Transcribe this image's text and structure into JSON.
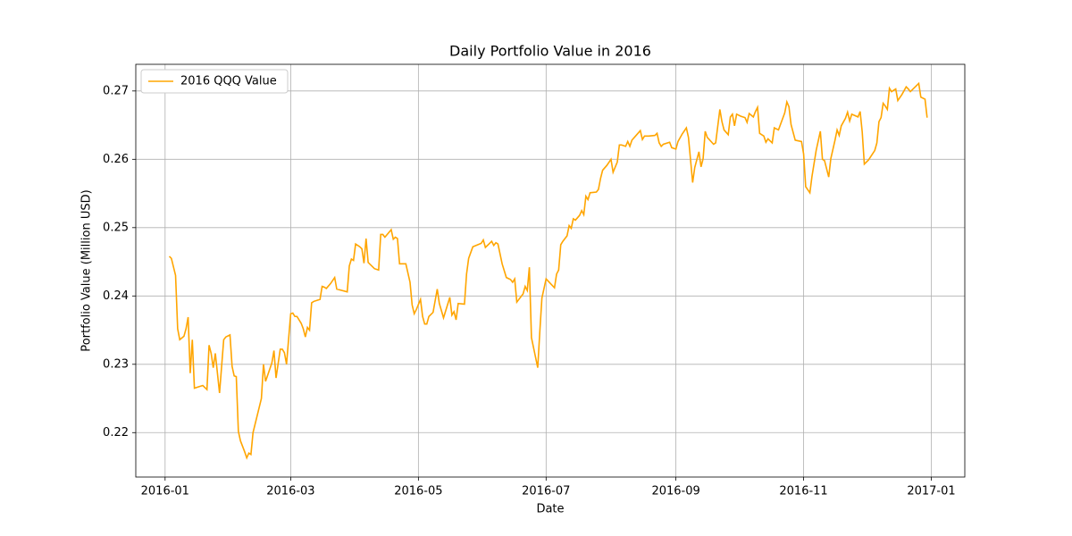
{
  "chart_data": {
    "type": "line",
    "title": "Daily Portfolio Value in 2016",
    "xlabel": "Date",
    "ylabel": "Portfolio Value (Million USD)",
    "x": [
      2,
      3,
      5,
      6,
      7,
      9,
      10,
      11,
      12,
      13,
      14,
      16,
      18,
      20,
      21,
      22,
      23,
      24,
      26,
      28,
      29,
      31,
      32,
      33,
      34,
      35,
      36,
      38,
      39,
      40,
      41,
      42,
      46,
      47,
      48,
      49,
      51,
      52,
      53,
      55,
      56,
      57,
      58,
      60,
      61,
      62,
      63,
      65,
      66,
      67,
      68,
      69,
      70,
      71,
      74,
      75,
      76,
      77,
      79,
      81,
      82,
      87,
      88,
      89,
      90,
      91,
      93,
      94,
      95,
      96,
      97,
      100,
      102,
      103,
      104,
      105,
      108,
      109,
      110,
      111,
      112,
      115,
      117,
      118,
      119,
      120,
      122,
      123,
      124,
      125,
      126,
      128,
      130,
      131,
      133,
      136,
      137,
      138,
      139,
      140,
      143,
      144,
      145,
      147,
      151,
      152,
      153,
      155,
      156,
      157,
      158,
      159,
      161,
      163,
      165,
      166,
      167,
      168,
      171,
      172,
      173,
      174,
      175,
      178,
      179,
      180,
      182,
      186,
      187,
      188,
      189,
      190,
      192,
      193,
      194,
      195,
      196,
      198,
      199,
      200,
      201,
      202,
      203,
      206,
      207,
      208,
      209,
      211,
      213,
      214,
      216,
      217,
      218,
      220,
      221,
      222,
      223,
      225,
      227,
      228,
      229,
      231,
      234,
      235,
      236,
      237,
      238,
      241,
      242,
      244,
      245,
      247,
      249,
      250,
      252,
      253,
      255,
      256,
      257,
      258,
      259,
      262,
      263,
      265,
      266,
      267,
      269,
      270,
      271,
      272,
      273,
      275,
      277,
      278,
      279,
      281,
      282,
      283,
      284,
      286,
      287,
      288,
      290,
      291,
      293,
      296,
      297,
      298,
      299,
      301,
      304,
      305,
      306,
      308,
      309,
      311,
      313,
      314,
      315,
      317,
      318,
      320,
      321,
      322,
      323,
      325,
      326,
      327,
      328,
      331,
      332,
      333,
      334,
      336,
      339,
      340,
      341,
      342,
      343,
      344,
      345,
      346,
      347,
      349,
      350,
      352,
      354,
      355,
      356,
      359,
      360,
      361,
      363,
      364
    ],
    "series": [
      {
        "name": "2016 QQQ Value",
        "color": "#ffa500",
        "values": [
          0.2458,
          0.2455,
          0.243,
          0.2352,
          0.2336,
          0.2341,
          0.2352,
          0.2369,
          0.2287,
          0.2336,
          0.2265,
          0.2267,
          0.2269,
          0.2263,
          0.2328,
          0.2316,
          0.2295,
          0.2316,
          0.2258,
          0.2336,
          0.234,
          0.2343,
          0.2297,
          0.2283,
          0.2282,
          0.2202,
          0.2188,
          0.2172,
          0.2163,
          0.217,
          0.2168,
          0.22,
          0.225,
          0.23,
          0.2275,
          0.2284,
          0.2302,
          0.232,
          0.228,
          0.2322,
          0.2322,
          0.2317,
          0.23,
          0.2374,
          0.2375,
          0.237,
          0.237,
          0.236,
          0.2352,
          0.234,
          0.2354,
          0.235,
          0.239,
          0.2392,
          0.2395,
          0.2414,
          0.2413,
          0.2411,
          0.2418,
          0.2427,
          0.241,
          0.2406,
          0.2444,
          0.2454,
          0.2452,
          0.2476,
          0.2472,
          0.2469,
          0.2448,
          0.2484,
          0.2449,
          0.244,
          0.2438,
          0.249,
          0.249,
          0.2486,
          0.2497,
          0.2483,
          0.2486,
          0.2484,
          0.2447,
          0.2447,
          0.242,
          0.2387,
          0.2374,
          0.238,
          0.2395,
          0.237,
          0.2359,
          0.2359,
          0.237,
          0.2376,
          0.241,
          0.2389,
          0.2368,
          0.2398,
          0.2372,
          0.2377,
          0.2365,
          0.2389,
          0.2388,
          0.2432,
          0.2455,
          0.2472,
          0.2477,
          0.2482,
          0.2471,
          0.2477,
          0.248,
          0.2474,
          0.2478,
          0.2476,
          0.2447,
          0.2427,
          0.2424,
          0.242,
          0.2425,
          0.2391,
          0.2403,
          0.2414,
          0.2408,
          0.2442,
          0.2339,
          0.2295,
          0.2348,
          0.2397,
          0.2425,
          0.2412,
          0.2432,
          0.2438,
          0.2475,
          0.248,
          0.2488,
          0.2503,
          0.2499,
          0.2513,
          0.2511,
          0.2518,
          0.2525,
          0.2519,
          0.2546,
          0.2541,
          0.2551,
          0.2552,
          0.2556,
          0.2572,
          0.2584,
          0.2591,
          0.26,
          0.2581,
          0.2596,
          0.2621,
          0.2621,
          0.2619,
          0.2626,
          0.2619,
          0.2628,
          0.2635,
          0.2642,
          0.2629,
          0.2634,
          0.2634,
          0.2635,
          0.2638,
          0.2624,
          0.2619,
          0.2622,
          0.2625,
          0.2617,
          0.2615,
          0.2626,
          0.2637,
          0.2646,
          0.2632,
          0.2566,
          0.2588,
          0.2611,
          0.2589,
          0.2601,
          0.2641,
          0.2632,
          0.2622,
          0.2624,
          0.2673,
          0.2655,
          0.2643,
          0.2636,
          0.2662,
          0.2666,
          0.2649,
          0.2666,
          0.2663,
          0.2661,
          0.2654,
          0.2667,
          0.2662,
          0.267,
          0.2676,
          0.2638,
          0.2634,
          0.2625,
          0.263,
          0.2624,
          0.2646,
          0.2643,
          0.2668,
          0.2684,
          0.2677,
          0.2651,
          0.2628,
          0.2626,
          0.2608,
          0.256,
          0.2551,
          0.2575,
          0.2613,
          0.2641,
          0.26,
          0.2598,
          0.2574,
          0.2601,
          0.2628,
          0.2643,
          0.2635,
          0.2649,
          0.266,
          0.2669,
          0.2656,
          0.2666,
          0.2662,
          0.267,
          0.264,
          0.2593,
          0.2599,
          0.2613,
          0.2624,
          0.2655,
          0.2661,
          0.2682,
          0.2678,
          0.2673,
          0.2704,
          0.2699,
          0.2703,
          0.2686,
          0.2695,
          0.2706,
          0.2703,
          0.2699,
          0.2708,
          0.2711,
          0.2691,
          0.2688,
          0.2661
        ]
      }
    ],
    "xlim": [
      -14,
      382
    ],
    "xticks": [
      {
        "value": 0,
        "label": "2016-01"
      },
      {
        "value": 60,
        "label": "2016-03"
      },
      {
        "value": 121,
        "label": "2016-05"
      },
      {
        "value": 182,
        "label": "2016-07"
      },
      {
        "value": 244,
        "label": "2016-09"
      },
      {
        "value": 305,
        "label": "2016-11"
      },
      {
        "value": 366,
        "label": "2017-01"
      }
    ],
    "ylim": [
      0.2135,
      0.2739
    ],
    "yticks": [
      0.22,
      0.23,
      0.24,
      0.25,
      0.26,
      0.27
    ],
    "grid": true,
    "legend": "upper-left"
  }
}
